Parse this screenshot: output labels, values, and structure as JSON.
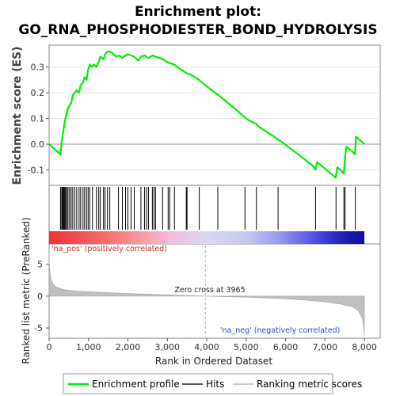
{
  "chart_data": {
    "type": "line",
    "title_line1": "Enrichment plot:",
    "title_line2": "GO_RNA_PHOSPHODIESTER_BOND_HYDROLYSIS",
    "xlabel": "Rank in Ordered Dataset",
    "ylabel_top": "Enrichment score (ES)",
    "ylabel_bottom": "Ranked list metric (PreRanked)",
    "xlim": [
      0,
      8400
    ],
    "ylim_top": [
      -0.16,
      0.385
    ],
    "ylim_bottom": [
      -6.6,
      8.2
    ],
    "x_ticks": [
      0,
      1000,
      2000,
      3000,
      4000,
      5000,
      6000,
      7000,
      8000
    ],
    "y_ticks_top": [
      -0.1,
      0.0,
      0.1,
      0.2,
      0.3
    ],
    "y_tick_labels_top": [
      "-0.1",
      "0.0",
      "0.1",
      "0.2",
      "0.3"
    ],
    "y_ticks_bottom": [
      -5,
      0,
      5
    ],
    "y_tick_labels_bottom": [
      "-5",
      "0",
      "5"
    ],
    "x_tick_labels": [
      "0",
      "1,000",
      "2,000",
      "3,000",
      "4,000",
      "5,000",
      "6,000",
      "7,000",
      "8,000"
    ],
    "enrichment_profile": {
      "name": "Enrichment profile",
      "color": "#00ee00",
      "points": [
        [
          0,
          0.0
        ],
        [
          290,
          -0.04
        ],
        [
          320,
          0.01
        ],
        [
          360,
          0.05
        ],
        [
          400,
          0.09
        ],
        [
          440,
          0.12
        ],
        [
          480,
          0.14
        ],
        [
          520,
          0.15
        ],
        [
          560,
          0.16
        ],
        [
          600,
          0.19
        ],
        [
          650,
          0.2
        ],
        [
          700,
          0.21
        ],
        [
          760,
          0.2
        ],
        [
          800,
          0.23
        ],
        [
          860,
          0.24
        ],
        [
          900,
          0.26
        ],
        [
          950,
          0.25
        ],
        [
          990,
          0.29
        ],
        [
          1030,
          0.31
        ],
        [
          1080,
          0.3
        ],
        [
          1140,
          0.31
        ],
        [
          1200,
          0.3
        ],
        [
          1260,
          0.32
        ],
        [
          1300,
          0.34
        ],
        [
          1380,
          0.33
        ],
        [
          1420,
          0.35
        ],
        [
          1480,
          0.36
        ],
        [
          1540,
          0.36
        ],
        [
          1600,
          0.355
        ],
        [
          1700,
          0.34
        ],
        [
          1780,
          0.345
        ],
        [
          1860,
          0.335
        ],
        [
          1940,
          0.345
        ],
        [
          2000,
          0.35
        ],
        [
          2080,
          0.345
        ],
        [
          2160,
          0.34
        ],
        [
          2260,
          0.325
        ],
        [
          2330,
          0.34
        ],
        [
          2420,
          0.345
        ],
        [
          2520,
          0.335
        ],
        [
          2620,
          0.345
        ],
        [
          2700,
          0.34
        ],
        [
          2800,
          0.335
        ],
        [
          2900,
          0.33
        ],
        [
          2980,
          0.32
        ],
        [
          3060,
          0.315
        ],
        [
          3180,
          0.31
        ],
        [
          3300,
          0.295
        ],
        [
          3400,
          0.285
        ],
        [
          3500,
          0.275
        ],
        [
          3600,
          0.27
        ],
        [
          3800,
          0.25
        ],
        [
          4000,
          0.225
        ],
        [
          4300,
          0.19
        ],
        [
          4700,
          0.14
        ],
        [
          5000,
          0.1
        ],
        [
          5100,
          0.09
        ],
        [
          5250,
          0.08
        ],
        [
          5300,
          0.07
        ],
        [
          5800,
          0.02
        ],
        [
          6200,
          -0.025
        ],
        [
          6700,
          -0.085
        ],
        [
          6760,
          -0.1
        ],
        [
          6800,
          -0.07
        ],
        [
          7000,
          -0.095
        ],
        [
          7270,
          -0.13
        ],
        [
          7310,
          -0.09
        ],
        [
          7400,
          -0.1
        ],
        [
          7480,
          -0.115
        ],
        [
          7500,
          -0.07
        ],
        [
          7540,
          -0.01
        ],
        [
          7700,
          -0.03
        ],
        [
          7760,
          -0.04
        ],
        [
          7790,
          0.03
        ],
        [
          8000,
          0.0
        ]
      ]
    },
    "hits": {
      "name": "Hits",
      "color": "#000000",
      "ranks": [
        290,
        320,
        340,
        360,
        380,
        400,
        420,
        450,
        480,
        520,
        560,
        600,
        650,
        700,
        760,
        800,
        860,
        900,
        950,
        990,
        1030,
        1100,
        1200,
        1260,
        1300,
        1380,
        1420,
        1480,
        1540,
        1760,
        1860,
        1940,
        2000,
        2080,
        2160,
        2330,
        2420,
        2470,
        2520,
        2620,
        2660,
        2700,
        2880,
        3020,
        3060,
        3180,
        3480,
        3500,
        3810,
        4280,
        4970,
        5260,
        5810,
        6760,
        7280,
        7480,
        7510,
        7770
      ]
    },
    "ranking_metric": {
      "name": "Ranking metric scores",
      "color": "#c0c0c0",
      "points": [
        [
          0,
          7.6
        ],
        [
          5,
          5.2
        ],
        [
          20,
          3.8
        ],
        [
          50,
          2.6
        ],
        [
          100,
          1.9
        ],
        [
          200,
          1.35
        ],
        [
          400,
          1.0
        ],
        [
          700,
          0.8
        ],
        [
          1000,
          0.7
        ],
        [
          1500,
          0.55
        ],
        [
          2000,
          0.42
        ],
        [
          2500,
          0.32
        ],
        [
          3000,
          0.2
        ],
        [
          3500,
          0.1
        ],
        [
          3965,
          0.0
        ],
        [
          4500,
          -0.08
        ],
        [
          5000,
          -0.16
        ],
        [
          5500,
          -0.28
        ],
        [
          6000,
          -0.42
        ],
        [
          6500,
          -0.6
        ],
        [
          7000,
          -0.9
        ],
        [
          7400,
          -1.25
        ],
        [
          7700,
          -1.7
        ],
        [
          7850,
          -2.3
        ],
        [
          7950,
          -3.5
        ],
        [
          7990,
          -5.2
        ],
        [
          8000,
          -6.3
        ]
      ]
    },
    "zero_cross_rank": 3965,
    "annotations": {
      "zero_cross": "Zero cross at 3965",
      "na_pos": "'na_pos' (positively correlated)",
      "na_neg": "'na_neg' (negatively correlated)"
    },
    "heat_bar": {
      "stops": [
        [
          0,
          "#f23030"
        ],
        [
          1000,
          "#f45a5a"
        ],
        [
          2000,
          "#f78a8a"
        ],
        [
          3000,
          "#f7b8d8"
        ],
        [
          4000,
          "#d8d8f4"
        ],
        [
          5000,
          "#c8c8ee"
        ],
        [
          5800,
          "#9a9af0"
        ],
        [
          6400,
          "#6a6ae8"
        ],
        [
          7000,
          "#3c3cd8"
        ],
        [
          7600,
          "#1a1aaa"
        ],
        [
          8000,
          "#1010a0"
        ]
      ]
    },
    "legend_labels": [
      "Enrichment profile",
      "Hits",
      "Ranking metric scores"
    ]
  }
}
